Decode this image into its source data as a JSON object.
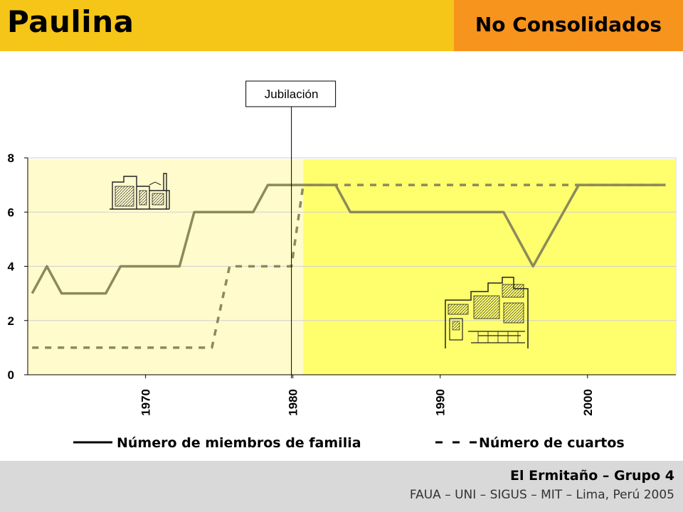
{
  "header": {
    "title": "Paulina",
    "subtitle": "No Consolidados",
    "left_color": "#f5c518",
    "right_color": "#f7941d"
  },
  "footer": {
    "line1": "El Ermitaño – Grupo 4",
    "line2": "FAUA – UNI – SIGUS – MIT – Lima, Perú 2005"
  },
  "chart_data": {
    "type": "line",
    "title": "",
    "xlabel": "",
    "ylabel": "",
    "xlim": [
      1962,
      2006
    ],
    "ylim": [
      0,
      8
    ],
    "x_ticks": [
      1970,
      1980,
      1990,
      2000
    ],
    "y_ticks": [
      0,
      2,
      4,
      6,
      8
    ],
    "grid": true,
    "legend_position": "bottom",
    "series": [
      {
        "name": "Número de miembros de familia",
        "style": "solid",
        "color": "#8c8a5a",
        "points": [
          [
            1962.3,
            3
          ],
          [
            1963.3,
            4
          ],
          [
            1964.3,
            3
          ],
          [
            1966,
            3
          ],
          [
            1967.3,
            3
          ],
          [
            1968.3,
            4
          ],
          [
            1970,
            4
          ],
          [
            1972.3,
            4
          ],
          [
            1973.3,
            6
          ],
          [
            1975,
            6
          ],
          [
            1977.3,
            6
          ],
          [
            1978.3,
            7
          ],
          [
            1981,
            7
          ],
          [
            1982.9,
            7
          ],
          [
            1983.9,
            6
          ],
          [
            1990,
            6
          ],
          [
            1994.3,
            6
          ],
          [
            1996.3,
            4
          ],
          [
            1999.4,
            7
          ],
          [
            2002,
            7
          ],
          [
            2005.3,
            7
          ]
        ]
      },
      {
        "name": "Número de cuartos",
        "style": "dashed",
        "color": "#8c8a5a",
        "points": [
          [
            1962.3,
            1
          ],
          [
            1966,
            1
          ],
          [
            1970,
            1
          ],
          [
            1974.5,
            1
          ],
          [
            1975.7,
            4
          ],
          [
            1978,
            4
          ],
          [
            1979.9,
            4
          ],
          [
            1980.7,
            7
          ],
          [
            1985,
            7
          ],
          [
            1990,
            7
          ],
          [
            1995,
            7
          ],
          [
            2000,
            7
          ],
          [
            2005.3,
            7
          ]
        ]
      }
    ],
    "regions": [
      {
        "from": 1962,
        "to": 1980.7,
        "color": "#fffbcc"
      },
      {
        "from": 1980.7,
        "to": 2006,
        "color": "#ffff6e"
      }
    ],
    "annotations": [
      {
        "x": 1979.9,
        "text": "Jubilación"
      }
    ]
  }
}
